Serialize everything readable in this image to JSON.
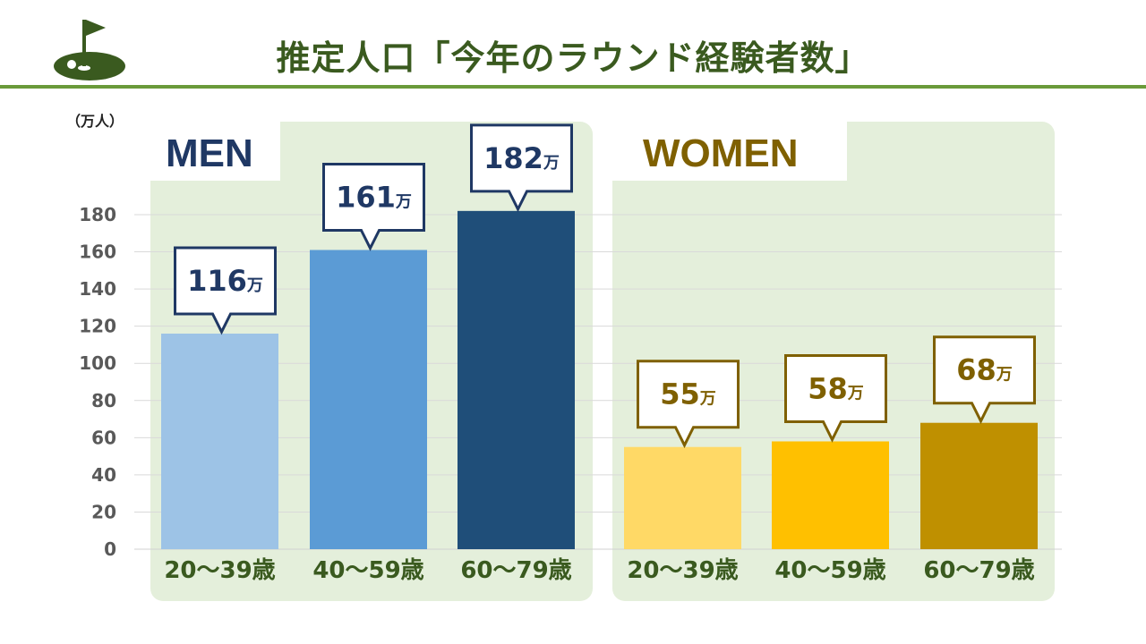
{
  "title": "推定人口「今年のラウンド経験者数」",
  "unit_label": "（万人）",
  "icons": {
    "logo": "golf-flag-icon"
  },
  "colors": {
    "title": "#3a5a1f",
    "rule": "#6a9a3a",
    "panel_bg": "#e4efdb",
    "men_text": "#1f3864",
    "women_text": "#7f6000",
    "tick_text": "#595959",
    "category_text": "#3a5a1f"
  },
  "chart_data": {
    "type": "bar",
    "ylim": [
      0,
      180
    ],
    "yticks": [
      0,
      20,
      40,
      60,
      80,
      100,
      120,
      140,
      160,
      180
    ],
    "grid": true,
    "value_suffix": "万",
    "panels": [
      {
        "name": "MEN",
        "categories": [
          "20～39歳",
          "40～59歳",
          "60～79歳"
        ],
        "values": [
          116,
          161,
          182
        ],
        "bar_colors": [
          "#9dc3e6",
          "#5b9bd5",
          "#1f4e79"
        ],
        "label_color": "#1f3864"
      },
      {
        "name": "WOMEN",
        "categories": [
          "20～39歳",
          "40～59歳",
          "60～79歳"
        ],
        "values": [
          55,
          58,
          68
        ],
        "bar_colors": [
          "#ffd966",
          "#ffc000",
          "#bf9000"
        ],
        "label_color": "#7f6000"
      }
    ]
  }
}
